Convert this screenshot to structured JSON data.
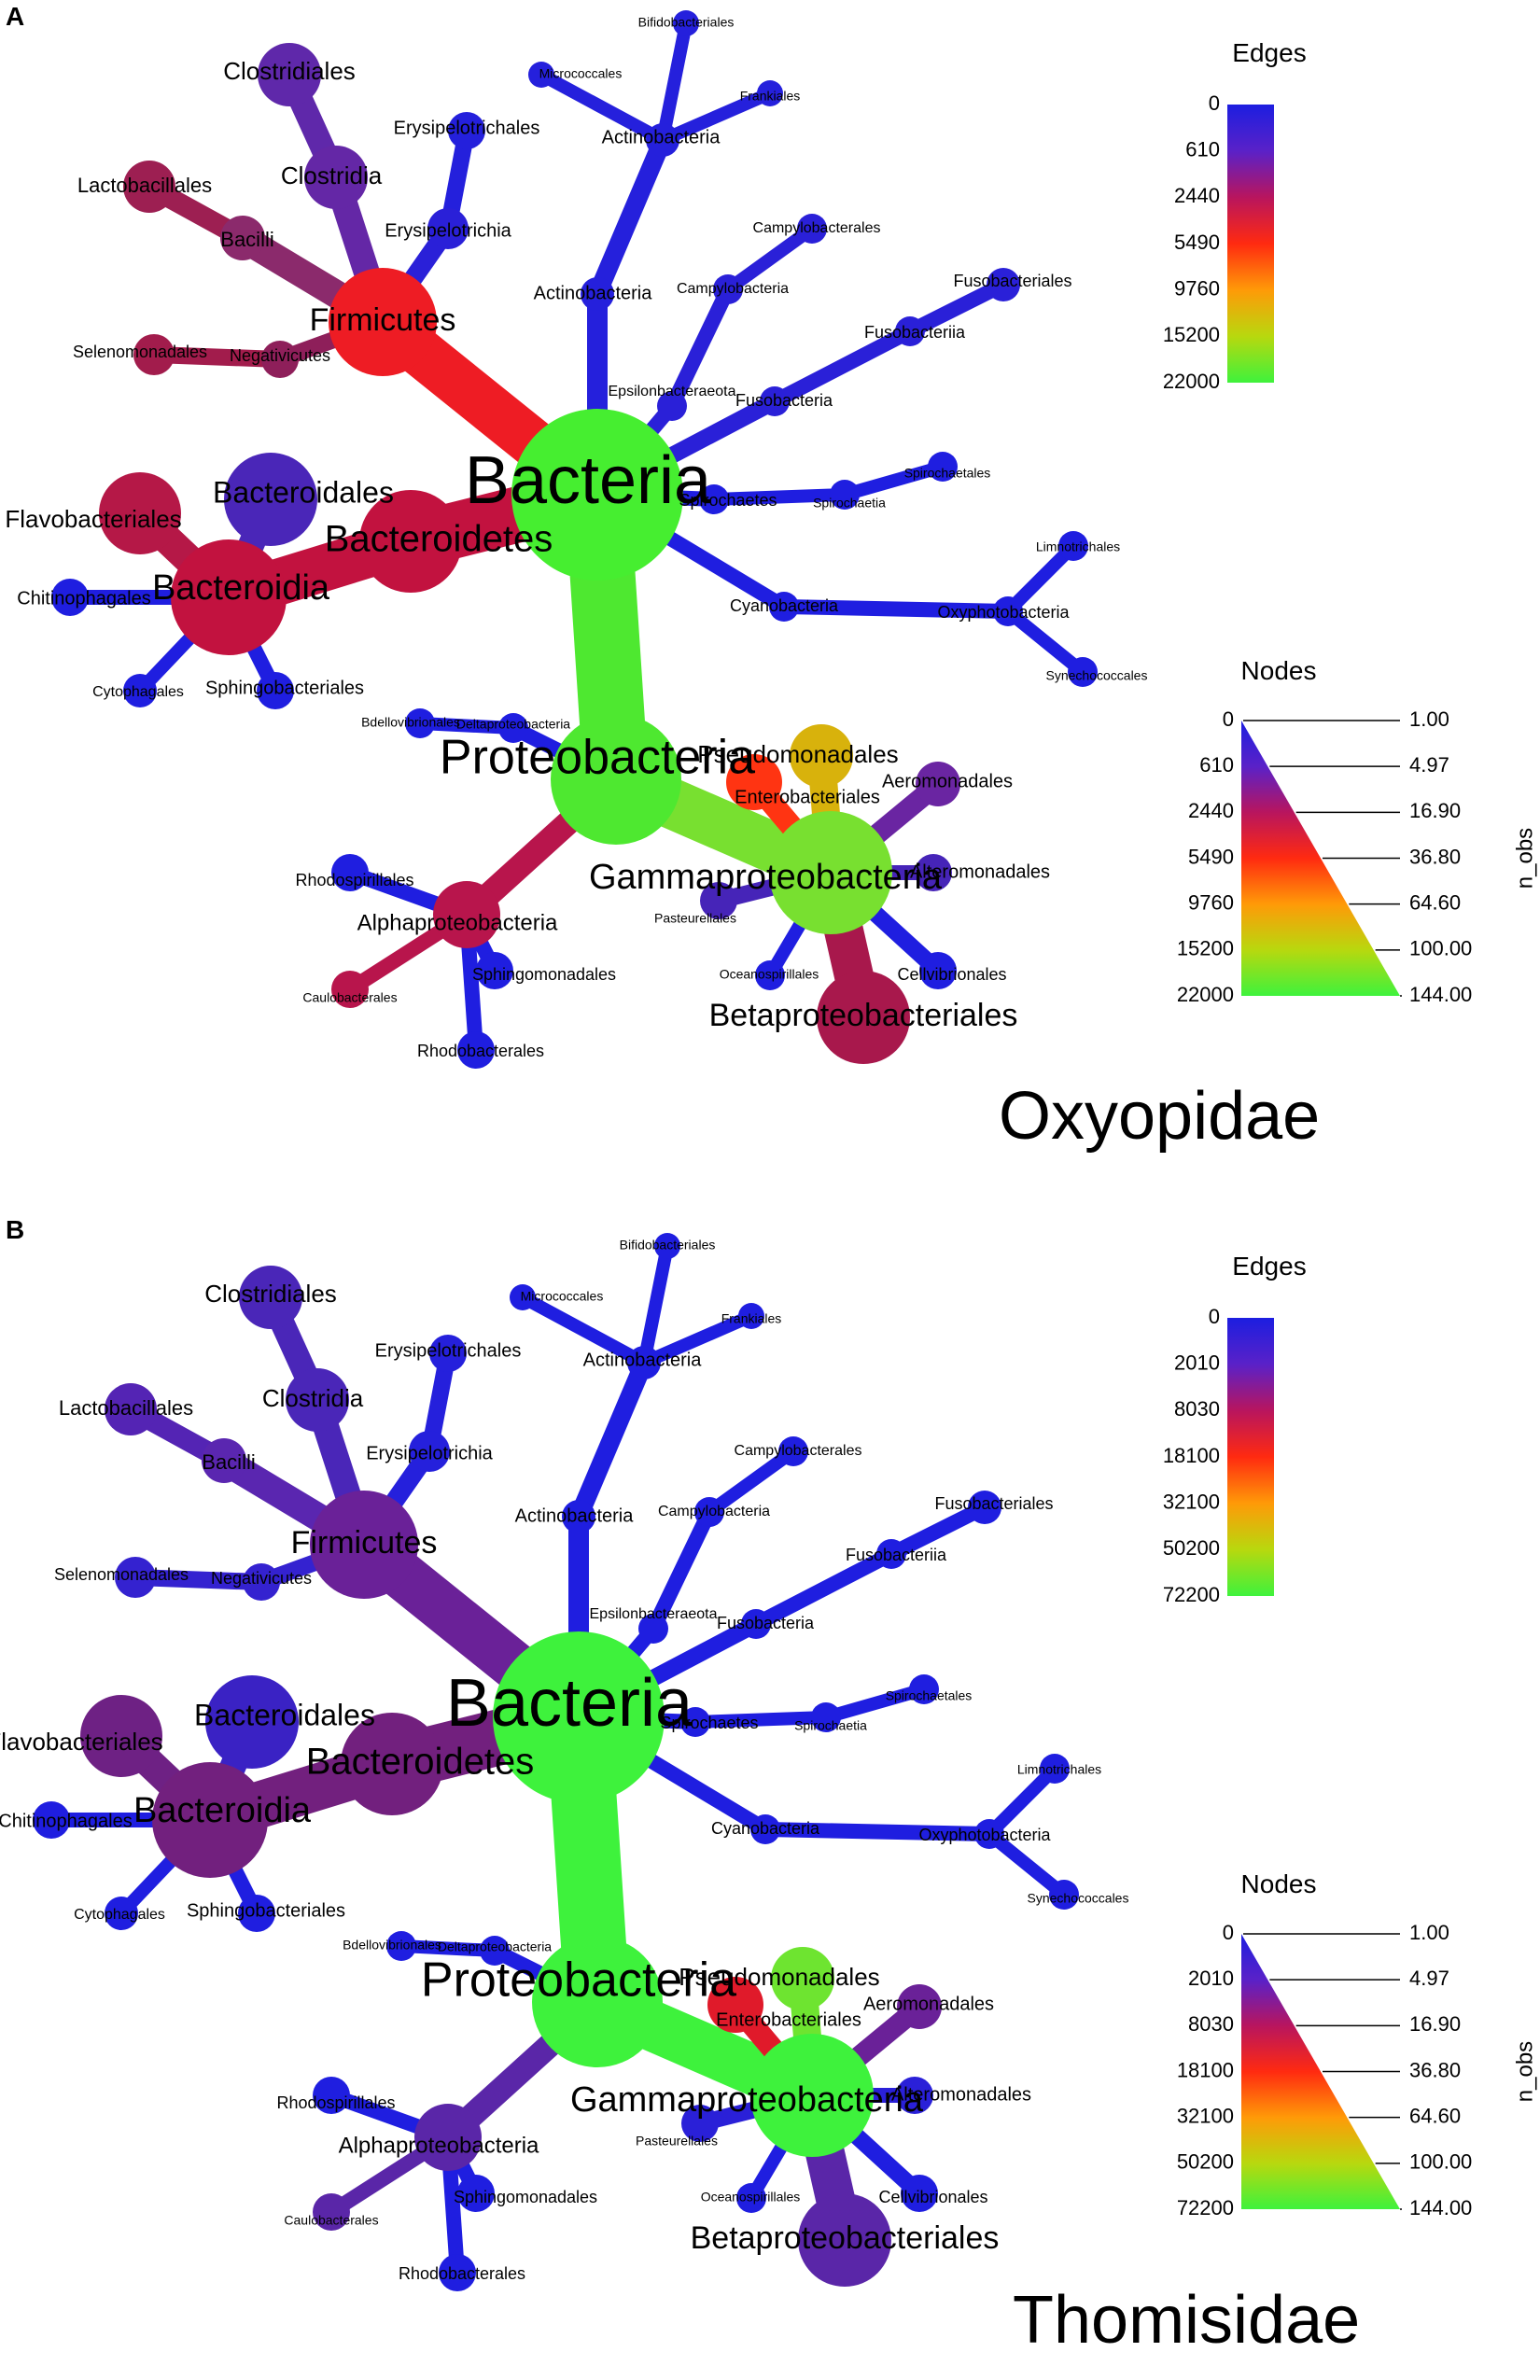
{
  "colors": {
    "scale": [
      "#1c1ee0",
      "#5a21c8",
      "#b8155e",
      "#ff2a10",
      "#ff9a08",
      "#b8d80e",
      "#3ef23c"
    ]
  },
  "panels": [
    {
      "id": "a",
      "letter": "A",
      "title": "Oxyopidae",
      "legend": {
        "edges_title": "Edges",
        "edge_ticks": [
          "0",
          "610",
          "2440",
          "5490",
          "9760",
          "15200",
          "22000"
        ],
        "nodes_title": "Nodes",
        "node_ticks": [
          "0",
          "610",
          "2440",
          "5490",
          "9760",
          "15200",
          "22000"
        ],
        "nobs_ticks": [
          "1.00",
          "4.97",
          "16.90",
          "36.80",
          "64.60",
          "100.00",
          "144.00"
        ],
        "nobs_label": "n_obs"
      },
      "node_colors": {
        "Bacteria": "#46ee30",
        "Firmicutes": "#ee1c24",
        "Bacilli": "#8b2a6c",
        "Lactobacillales": "#9d1f52",
        "Clostridia": "#6427a6",
        "Clostridiales": "#5f28aa",
        "Erysipelotrichia": "#2a20d8",
        "Erysipelotrichales": "#2420dc",
        "Negativicutes": "#8e1f5a",
        "Selenomonadales": "#a21c4c",
        "Bacteroidetes": "#c2123f",
        "Bacteroidia": "#c2123f",
        "Flavobacteriales": "#b51847",
        "Bacteroidales": "#4a26b8",
        "Chitinophagales": "#1f1ee0",
        "Cytophagales": "#1f1ee0",
        "Sphingobacteriales": "#1f1ee0",
        "Actinobacteria": "#2520dc",
        "Actinobacteria_o": "#2520dc",
        "Bifidobacteriales": "#2520dc",
        "Micrococcales": "#2520dc",
        "Frankiales": "#2520dc",
        "Epsilonbacteraeota": "#2a20d8",
        "Campylobacteria": "#2a20d8",
        "Campylobacterales": "#2a20d8",
        "Fusobacteria": "#2a20d8",
        "Fusobacteriia": "#2a20d8",
        "Fusobacteriales": "#2a20d8",
        "Spirochaetes": "#1f1ee0",
        "Spirochaetia": "#1f1ee0",
        "Spirochaetales": "#1f1ee0",
        "Cyanobacteria": "#1f1ee0",
        "Oxyphotobacteria": "#1f1ee0",
        "Limnotrichales": "#1f1ee0",
        "Synechococcales": "#1f1ee0",
        "Proteobacteria": "#4ee830",
        "Deltaproteobacteria": "#1f1ee0",
        "Bdellovibrionales": "#1f1ee0",
        "Gammaproteobacteria": "#78e030",
        "Pseudomonadales": "#d8b20c",
        "Enterobacteriales": "#ff3412",
        "Aeromonadales": "#6a25a2",
        "Alteromonadales": "#4624b8",
        "Pasteurellales": "#4624b8",
        "Cellvibrionales": "#1f1ee0",
        "Oceanospirillales": "#1f1ee0",
        "Betaproteobacteriales": "#a8184c",
        "Alphaproteobacteria": "#b8154c",
        "Rhodospirillales": "#1f1ee0",
        "Sphingomonadales": "#1f1ee0",
        "Caulobacterales": "#b8154c",
        "Rhodobacterales": "#1f1ee0"
      }
    },
    {
      "id": "b",
      "letter": "B",
      "title": "Thomisidae",
      "legend": {
        "edges_title": "Edges",
        "edge_ticks": [
          "0",
          "2010",
          "8030",
          "18100",
          "32100",
          "50200",
          "72200"
        ],
        "nodes_title": "Nodes",
        "node_ticks": [
          "0",
          "2010",
          "8030",
          "18100",
          "32100",
          "50200",
          "72200"
        ],
        "nobs_ticks": [
          "1.00",
          "4.97",
          "16.90",
          "36.80",
          "64.60",
          "100.00",
          "144.00"
        ],
        "nobs_label": "n_obs"
      },
      "node_colors": {
        "Bacteria": "#3ef23c",
        "Firmicutes": "#6a2198",
        "Bacilli": "#5a26b0",
        "Lactobacillales": "#5424b4",
        "Clostridia": "#4a26b8",
        "Clostridiales": "#4a26b8",
        "Erysipelotrichia": "#2520dc",
        "Erysipelotrichales": "#2520dc",
        "Negativicutes": "#3422d0",
        "Selenomonadales": "#3422d0",
        "Bacteroidetes": "#72207e",
        "Bacteroidia": "#72207e",
        "Flavobacteriales": "#6e2184",
        "Bacteroidales": "#3a22c4",
        "Chitinophagales": "#1f1ee0",
        "Cytophagales": "#1f1ee0",
        "Sphingobacteriales": "#1f1ee0",
        "Actinobacteria": "#1f1ee0",
        "Actinobacteria_o": "#1f1ee0",
        "Bifidobacteriales": "#1f1ee0",
        "Micrococcales": "#1f1ee0",
        "Frankiales": "#1f1ee0",
        "Epsilonbacteraeota": "#1f1ee0",
        "Campylobacteria": "#1f1ee0",
        "Campylobacterales": "#1f1ee0",
        "Fusobacteria": "#1f1ee0",
        "Fusobacteriia": "#1f1ee0",
        "Fusobacteriales": "#1f1ee0",
        "Spirochaetes": "#1f1ee0",
        "Spirochaetia": "#1f1ee0",
        "Spirochaetales": "#1f1ee0",
        "Cyanobacteria": "#1f1ee0",
        "Oxyphotobacteria": "#1f1ee0",
        "Limnotrichales": "#1f1ee0",
        "Synechococcales": "#1f1ee0",
        "Proteobacteria": "#3ef23c",
        "Deltaproteobacteria": "#1f1ee0",
        "Bdellovibrionales": "#1f1ee0",
        "Gammaproteobacteria": "#3ef23c",
        "Pseudomonadales": "#6ee430",
        "Enterobacteriales": "#e01a2a",
        "Aeromonadales": "#6a2198",
        "Alteromonadales": "#2a20d8",
        "Pasteurellales": "#2a20d8",
        "Cellvibrionales": "#1f1ee0",
        "Oceanospirillales": "#1f1ee0",
        "Betaproteobacteriales": "#5a26a8",
        "Alphaproteobacteria": "#5a26a8",
        "Rhodospirillales": "#1f1ee0",
        "Sphingomonadales": "#1f1ee0",
        "Caulobacterales": "#5a26a8",
        "Rhodobacterales": "#1f1ee0"
      }
    }
  ],
  "taxa": {
    "Bacteria": "Bacteria",
    "Firmicutes": "Firmicutes",
    "Bacilli": "Bacilli",
    "Lactobacillales": "Lactobacillales",
    "Clostridia": "Clostridia",
    "Clostridiales": "Clostridiales",
    "Erysipelotrichia": "Erysipelotrichia",
    "Erysipelotrichales": "Erysipelotrichales",
    "Negativicutes": "Negativicutes",
    "Selenomonadales": "Selenomonadales",
    "Bacteroidetes": "Bacteroidetes",
    "Bacteroidia": "Bacteroidia",
    "Flavobacteriales": "Flavobacteriales",
    "Bacteroidales": "Bacteroidales",
    "Chitinophagales": "Chitinophagales",
    "Cytophagales": "Cytophagales",
    "Sphingobacteriales": "Sphingobacteriales",
    "Actinobacteria": "Actinobacteria",
    "Actinobacteria_o": "Actinobacteria",
    "Bifidobacteriales": "Bifidobacteriales",
    "Micrococcales": "Micrococcales",
    "Frankiales": "Frankiales",
    "Epsilonbacteraeota": "Epsilonbacteraeota",
    "Campylobacteria": "Campylobacteria",
    "Campylobacterales": "Campylobacterales",
    "Fusobacteria": "Fusobacteria",
    "Fusobacteriia": "Fusobacteriia",
    "Fusobacteriales": "Fusobacteriales",
    "Spirochaetes": "Spirochaetes",
    "Spirochaetia": "Spirochaetia",
    "Spirochaetales": "Spirochaetales",
    "Cyanobacteria": "Cyanobacteria",
    "Oxyphotobacteria": "Oxyphotobacteria",
    "Limnotrichales": "Limnotrichales",
    "Synechococcales": "Synechococcales",
    "Proteobacteria": "Proteobacteria",
    "Deltaproteobacteria": "Deltaproteobacteria",
    "Bdellovibrionales": "Bdellovibrionales",
    "Gammaproteobacteria": "Gammaproteobacteria",
    "Pseudomonadales": "Pseudomonadales",
    "Enterobacteriales": "Enterobacteriales",
    "Aeromonadales": "Aeromonadales",
    "Alteromonadales": "Alteromonadales",
    "Pasteurellales": "Pasteurellales",
    "Cellvibrionales": "Cellvibrionales",
    "Oceanospirillales": "Oceanospirillales",
    "Betaproteobacteriales": "Betaproteobacteriales",
    "Alphaproteobacteria": "Alphaproteobacteria",
    "Rhodospirillales": "Rhodospirillales",
    "Sphingomonadales": "Sphingomonadales",
    "Caulobacterales": "Caulobacterales",
    "Rhodobacterales": "Rhodobacterales"
  },
  "edges": [
    [
      "Bacteria",
      "Firmicutes"
    ],
    [
      "Firmicutes",
      "Bacilli"
    ],
    [
      "Bacilli",
      "Lactobacillales"
    ],
    [
      "Firmicutes",
      "Clostridia"
    ],
    [
      "Clostridia",
      "Clostridiales"
    ],
    [
      "Firmicutes",
      "Erysipelotrichia"
    ],
    [
      "Erysipelotrichia",
      "Erysipelotrichales"
    ],
    [
      "Firmicutes",
      "Negativicutes"
    ],
    [
      "Negativicutes",
      "Selenomonadales"
    ],
    [
      "Bacteria",
      "Bacteroidetes"
    ],
    [
      "Bacteroidetes",
      "Bacteroidia"
    ],
    [
      "Bacteroidia",
      "Flavobacteriales"
    ],
    [
      "Bacteroidia",
      "Bacteroidales"
    ],
    [
      "Bacteroidia",
      "Chitinophagales"
    ],
    [
      "Bacteroidia",
      "Cytophagales"
    ],
    [
      "Bacteroidia",
      "Sphingobacteriales"
    ],
    [
      "Bacteria",
      "Actinobacteria"
    ],
    [
      "Actinobacteria",
      "Actinobacteria_o"
    ],
    [
      "Actinobacteria_o",
      "Bifidobacteriales"
    ],
    [
      "Actinobacteria_o",
      "Micrococcales"
    ],
    [
      "Actinobacteria_o",
      "Frankiales"
    ],
    [
      "Bacteria",
      "Epsilonbacteraeota"
    ],
    [
      "Epsilonbacteraeota",
      "Campylobacteria"
    ],
    [
      "Campylobacteria",
      "Campylobacterales"
    ],
    [
      "Bacteria",
      "Fusobacteria"
    ],
    [
      "Fusobacteria",
      "Fusobacteriia"
    ],
    [
      "Fusobacteriia",
      "Fusobacteriales"
    ],
    [
      "Bacteria",
      "Spirochaetes"
    ],
    [
      "Spirochaetes",
      "Spirochaetia"
    ],
    [
      "Spirochaetia",
      "Spirochaetales"
    ],
    [
      "Bacteria",
      "Cyanobacteria"
    ],
    [
      "Cyanobacteria",
      "Oxyphotobacteria"
    ],
    [
      "Oxyphotobacteria",
      "Limnotrichales"
    ],
    [
      "Oxyphotobacteria",
      "Synechococcales"
    ],
    [
      "Bacteria",
      "Proteobacteria"
    ],
    [
      "Proteobacteria",
      "Deltaproteobacteria"
    ],
    [
      "Deltaproteobacteria",
      "Bdellovibrionales"
    ],
    [
      "Proteobacteria",
      "Gammaproteobacteria"
    ],
    [
      "Gammaproteobacteria",
      "Pseudomonadales"
    ],
    [
      "Gammaproteobacteria",
      "Enterobacteriales"
    ],
    [
      "Gammaproteobacteria",
      "Aeromonadales"
    ],
    [
      "Gammaproteobacteria",
      "Alteromonadales"
    ],
    [
      "Gammaproteobacteria",
      "Pasteurellales"
    ],
    [
      "Gammaproteobacteria",
      "Cellvibrionales"
    ],
    [
      "Gammaproteobacteria",
      "Oceanospirillales"
    ],
    [
      "Gammaproteobacteria",
      "Betaproteobacteriales"
    ],
    [
      "Proteobacteria",
      "Alphaproteobacteria"
    ],
    [
      "Alphaproteobacteria",
      "Rhodospirillales"
    ],
    [
      "Alphaproteobacteria",
      "Sphingomonadales"
    ],
    [
      "Alphaproteobacteria",
      "Caulobacterales"
    ],
    [
      "Alphaproteobacteria",
      "Rhodobacterales"
    ]
  ]
}
